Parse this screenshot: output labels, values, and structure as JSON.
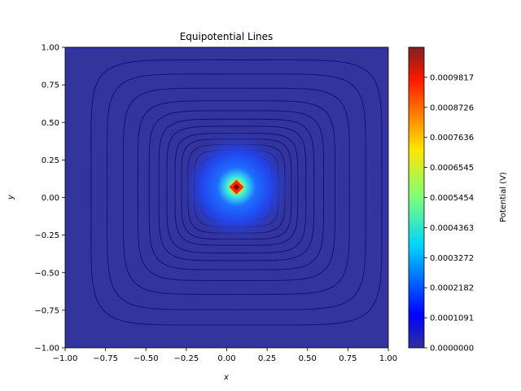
{
  "chart_data": {
    "type": "heatmap",
    "title": "Equipotential Lines",
    "xlabel": "x",
    "ylabel": "y",
    "xlim": [
      -1.0,
      1.0
    ],
    "ylim": [
      -1.0,
      1.0
    ],
    "x_ticks": [
      "−1.00",
      "−0.75",
      "−0.50",
      "−0.25",
      "0.00",
      "0.25",
      "0.50",
      "0.75",
      "1.00"
    ],
    "y_ticks": [
      "−1.00",
      "−0.75",
      "−0.50",
      "−0.25",
      "0.00",
      "0.25",
      "0.50",
      "0.75",
      "1.00"
    ],
    "colorbar": {
      "label": "Potential (V)",
      "colormap": "jet",
      "range": [
        0.0,
        0.0010908
      ],
      "tick_labels": [
        "0.0000000",
        "0.0001091",
        "0.0002182",
        "0.0003272",
        "0.0004363",
        "0.0005454",
        "0.0006545",
        "0.0007636",
        "0.0008726",
        "0.0009817"
      ]
    },
    "source": {
      "x": 0.06,
      "y": 0.07
    },
    "contour_levels_radii": [
      0.06,
      0.1,
      0.14,
      0.18,
      0.22,
      0.26,
      0.3,
      0.34,
      0.38,
      0.43,
      0.48,
      0.54,
      0.61,
      0.7,
      0.8,
      0.9
    ],
    "grid": false
  }
}
